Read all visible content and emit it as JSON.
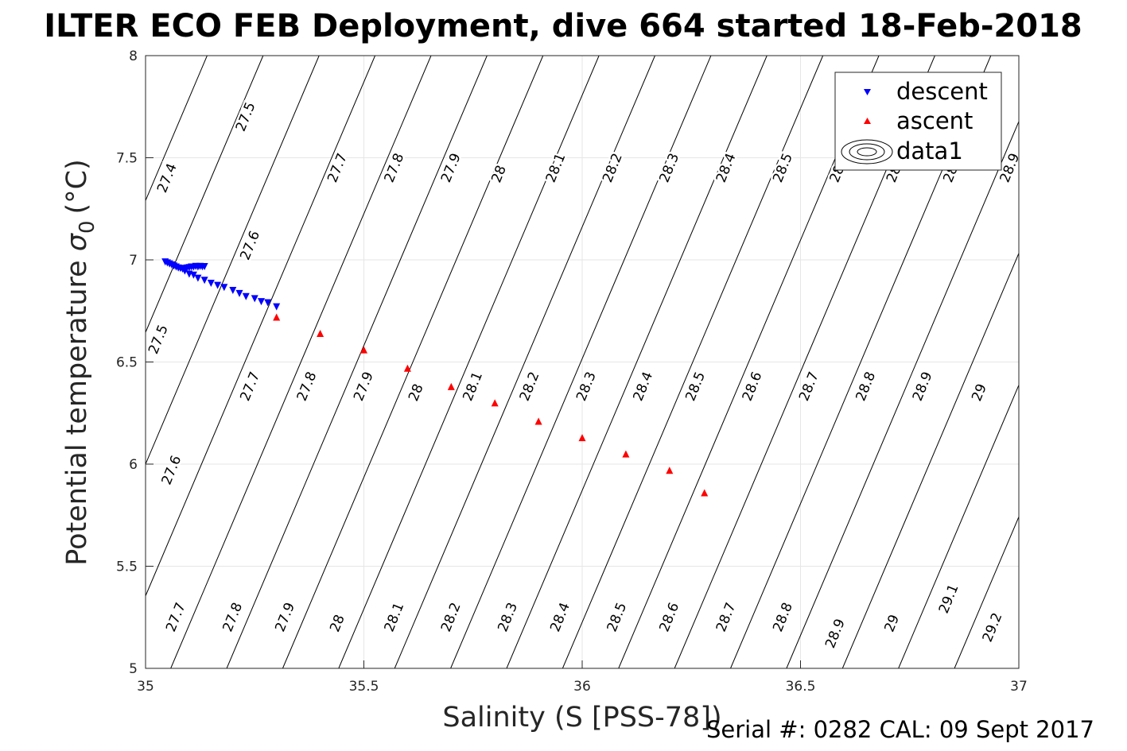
{
  "title": "ILTER ECO FEB Deployment, dive 664 started 18-Feb-2018",
  "footer": "Serial #: 0282  CAL: 09 Sept 2017",
  "chart_data": {
    "type": "scatter",
    "xlabel": "Salinity (S [PSS-78])",
    "ylabel": "Potential temperature",
    "ylabel_symbol": "σ",
    "ylabel_subscript": "0",
    "ylabel_unit": "(°C)",
    "xlim": [
      35,
      37
    ],
    "ylim": [
      5,
      8
    ],
    "xticks": [
      "35",
      "35.5",
      "36",
      "36.5",
      "37"
    ],
    "yticks": [
      "5",
      "5.5",
      "6",
      "6.5",
      "7",
      "7.5",
      "8"
    ],
    "grid": true,
    "legend_position": "top-right",
    "series": [
      {
        "name": "descent",
        "marker": "triangle-down",
        "color": "#0000ff",
        "points": [
          [
            35.045,
            6.99
          ],
          [
            35.05,
            6.985
          ],
          [
            35.055,
            6.98
          ],
          [
            35.06,
            6.975
          ],
          [
            35.065,
            6.97
          ],
          [
            35.07,
            6.965
          ],
          [
            35.075,
            6.96
          ],
          [
            35.08,
            6.958
          ],
          [
            35.085,
            6.955
          ],
          [
            35.09,
            6.955
          ],
          [
            35.095,
            6.96
          ],
          [
            35.1,
            6.962
          ],
          [
            35.105,
            6.965
          ],
          [
            35.11,
            6.965
          ],
          [
            35.115,
            6.968
          ],
          [
            35.12,
            6.965
          ],
          [
            35.125,
            6.968
          ],
          [
            35.13,
            6.966
          ],
          [
            35.135,
            6.967
          ],
          [
            35.09,
            6.945
          ],
          [
            35.1,
            6.93
          ],
          [
            35.11,
            6.925
          ],
          [
            35.12,
            6.91
          ],
          [
            35.135,
            6.9
          ],
          [
            35.15,
            6.885
          ],
          [
            35.165,
            6.875
          ],
          [
            35.18,
            6.865
          ],
          [
            35.2,
            6.85
          ],
          [
            35.215,
            6.835
          ],
          [
            35.23,
            6.82
          ],
          [
            35.25,
            6.81
          ],
          [
            35.265,
            6.795
          ],
          [
            35.28,
            6.79
          ],
          [
            35.3,
            6.77
          ]
        ]
      },
      {
        "name": "ascent",
        "marker": "triangle-up",
        "color": "#ff0000",
        "points": [
          [
            35.3,
            6.72
          ],
          [
            35.4,
            6.64
          ],
          [
            35.5,
            6.56
          ],
          [
            35.6,
            6.47
          ],
          [
            35.7,
            6.38
          ],
          [
            35.8,
            6.3
          ],
          [
            35.9,
            6.21
          ],
          [
            36.0,
            6.13
          ],
          [
            36.1,
            6.05
          ],
          [
            36.2,
            5.97
          ],
          [
            36.28,
            5.86
          ]
        ]
      },
      {
        "name": "data1",
        "marker": "contour",
        "color": "#000000",
        "points": []
      }
    ],
    "isopycnals": [
      27.4,
      27.5,
      27.6,
      27.7,
      27.8,
      27.9,
      28.0,
      28.1,
      28.2,
      28.3,
      28.4,
      28.5,
      28.6,
      28.7,
      28.8,
      28.9,
      29.0,
      29.1,
      29.2
    ],
    "contour_labels": [
      {
        "text": "27.4",
        "x": 35.05,
        "y": 7.4
      },
      {
        "text": "27.5",
        "x": 35.23,
        "y": 7.7
      },
      {
        "text": "27.7",
        "x": 35.44,
        "y": 7.45
      },
      {
        "text": "27.8",
        "x": 35.57,
        "y": 7.45
      },
      {
        "text": "27.9",
        "x": 35.7,
        "y": 7.45
      },
      {
        "text": "28",
        "x": 35.81,
        "y": 7.42
      },
      {
        "text": "28.1",
        "x": 35.94,
        "y": 7.45
      },
      {
        "text": "28.2",
        "x": 36.07,
        "y": 7.45
      },
      {
        "text": "28.3",
        "x": 36.2,
        "y": 7.45
      },
      {
        "text": "28.4",
        "x": 36.33,
        "y": 7.45
      },
      {
        "text": "28.5",
        "x": 36.46,
        "y": 7.45
      },
      {
        "text": "28.6",
        "x": 36.59,
        "y": 7.45
      },
      {
        "text": "28.7",
        "x": 36.72,
        "y": 7.45
      },
      {
        "text": "28.8",
        "x": 36.85,
        "y": 7.45
      },
      {
        "text": "28.9",
        "x": 36.98,
        "y": 7.45
      },
      {
        "text": "27.6",
        "x": 35.24,
        "y": 7.07
      },
      {
        "text": "27.5",
        "x": 35.03,
        "y": 6.61
      },
      {
        "text": "27.7",
        "x": 35.24,
        "y": 6.38
      },
      {
        "text": "27.8",
        "x": 35.37,
        "y": 6.38
      },
      {
        "text": "27.9",
        "x": 35.5,
        "y": 6.38
      },
      {
        "text": "28",
        "x": 35.62,
        "y": 6.35
      },
      {
        "text": "28.1",
        "x": 35.75,
        "y": 6.38
      },
      {
        "text": "28.2",
        "x": 35.88,
        "y": 6.38
      },
      {
        "text": "28.3",
        "x": 36.01,
        "y": 6.38
      },
      {
        "text": "28.4",
        "x": 36.14,
        "y": 6.38
      },
      {
        "text": "28.5",
        "x": 36.26,
        "y": 6.38
      },
      {
        "text": "28.6",
        "x": 36.39,
        "y": 6.38
      },
      {
        "text": "28.7",
        "x": 36.52,
        "y": 6.38
      },
      {
        "text": "28.8",
        "x": 36.65,
        "y": 6.38
      },
      {
        "text": "28.9",
        "x": 36.78,
        "y": 6.38
      },
      {
        "text": "29",
        "x": 36.91,
        "y": 6.35
      },
      {
        "text": "27.6",
        "x": 35.06,
        "y": 5.97
      },
      {
        "text": "27.7",
        "x": 35.07,
        "y": 5.25
      },
      {
        "text": "27.8",
        "x": 35.2,
        "y": 5.25
      },
      {
        "text": "27.9",
        "x": 35.32,
        "y": 5.25
      },
      {
        "text": "28",
        "x": 35.44,
        "y": 5.22
      },
      {
        "text": "28.1",
        "x": 35.57,
        "y": 5.25
      },
      {
        "text": "28.2",
        "x": 35.7,
        "y": 5.25
      },
      {
        "text": "28.3",
        "x": 35.83,
        "y": 5.25
      },
      {
        "text": "28.4",
        "x": 35.95,
        "y": 5.25
      },
      {
        "text": "28.5",
        "x": 36.08,
        "y": 5.25
      },
      {
        "text": "28.6",
        "x": 36.2,
        "y": 5.25
      },
      {
        "text": "28.7",
        "x": 36.33,
        "y": 5.25
      },
      {
        "text": "28.8",
        "x": 36.46,
        "y": 5.25
      },
      {
        "text": "28.9",
        "x": 36.58,
        "y": 5.17
      },
      {
        "text": "29",
        "x": 36.71,
        "y": 5.22
      },
      {
        "text": "29.1",
        "x": 36.84,
        "y": 5.34
      },
      {
        "text": "29.2",
        "x": 36.94,
        "y": 5.2
      }
    ]
  }
}
